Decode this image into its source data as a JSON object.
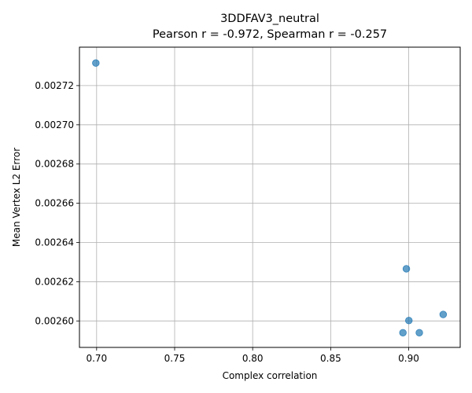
{
  "chart_data": {
    "type": "scatter",
    "title": "3DDFAV3_neutral",
    "subtitle": "Pearson r = -0.972, Spearman r = -0.257",
    "xlabel": "Complex correlation",
    "ylabel": "Mean Vertex L2 Error",
    "xlim": [
      0.689,
      0.933
    ],
    "ylim": [
      0.0025865,
      0.0027396
    ],
    "xticks": [
      0.7,
      0.75,
      0.8,
      0.85,
      0.9
    ],
    "xtick_labels": [
      "0.70",
      "0.75",
      "0.80",
      "0.85",
      "0.90"
    ],
    "yticks": [
      0.0026,
      0.00262,
      0.00264,
      0.00266,
      0.00268,
      0.0027,
      0.00272
    ],
    "ytick_labels": [
      "0.00260",
      "0.00262",
      "0.00264",
      "0.00266",
      "0.00268",
      "0.00270",
      "0.00272"
    ],
    "grid": true,
    "point_color": "#1f77b4",
    "points": [
      {
        "x": 0.6995,
        "y": 0.0027315
      },
      {
        "x": 0.8985,
        "y": 0.0026266
      },
      {
        "x": 0.9221,
        "y": 0.0026033
      },
      {
        "x": 0.9001,
        "y": 0.0026002
      },
      {
        "x": 0.8963,
        "y": 0.002594
      },
      {
        "x": 0.9068,
        "y": 0.002594
      }
    ]
  }
}
